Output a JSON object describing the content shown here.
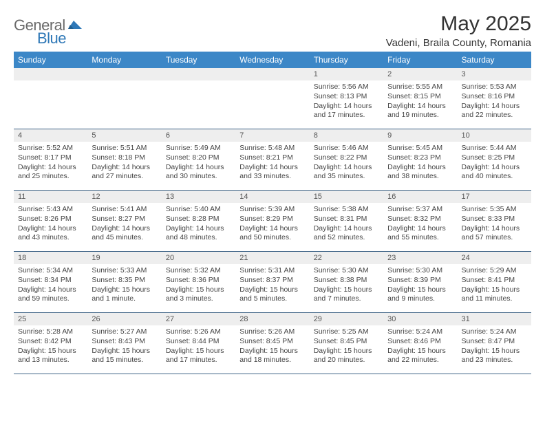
{
  "brand": {
    "general": "General",
    "blue": "Blue"
  },
  "title": "May 2025",
  "location": "Vadeni, Braila County, Romania",
  "dow": [
    "Sunday",
    "Monday",
    "Tuesday",
    "Wednesday",
    "Thursday",
    "Friday",
    "Saturday"
  ],
  "colors": {
    "header_bg": "#3c87c7",
    "header_text": "#ffffff",
    "row_divider": "#3c6285",
    "daybar_bg": "#eeeeee",
    "logo_gray": "#6a6a6a",
    "logo_blue": "#2f78b7"
  },
  "weeks": [
    [
      {
        "n": "",
        "sr": "",
        "ss": "",
        "dl": ""
      },
      {
        "n": "",
        "sr": "",
        "ss": "",
        "dl": ""
      },
      {
        "n": "",
        "sr": "",
        "ss": "",
        "dl": ""
      },
      {
        "n": "",
        "sr": "",
        "ss": "",
        "dl": ""
      },
      {
        "n": "1",
        "sr": "Sunrise: 5:56 AM",
        "ss": "Sunset: 8:13 PM",
        "dl": "Daylight: 14 hours and 17 minutes."
      },
      {
        "n": "2",
        "sr": "Sunrise: 5:55 AM",
        "ss": "Sunset: 8:15 PM",
        "dl": "Daylight: 14 hours and 19 minutes."
      },
      {
        "n": "3",
        "sr": "Sunrise: 5:53 AM",
        "ss": "Sunset: 8:16 PM",
        "dl": "Daylight: 14 hours and 22 minutes."
      }
    ],
    [
      {
        "n": "4",
        "sr": "Sunrise: 5:52 AM",
        "ss": "Sunset: 8:17 PM",
        "dl": "Daylight: 14 hours and 25 minutes."
      },
      {
        "n": "5",
        "sr": "Sunrise: 5:51 AM",
        "ss": "Sunset: 8:18 PM",
        "dl": "Daylight: 14 hours and 27 minutes."
      },
      {
        "n": "6",
        "sr": "Sunrise: 5:49 AM",
        "ss": "Sunset: 8:20 PM",
        "dl": "Daylight: 14 hours and 30 minutes."
      },
      {
        "n": "7",
        "sr": "Sunrise: 5:48 AM",
        "ss": "Sunset: 8:21 PM",
        "dl": "Daylight: 14 hours and 33 minutes."
      },
      {
        "n": "8",
        "sr": "Sunrise: 5:46 AM",
        "ss": "Sunset: 8:22 PM",
        "dl": "Daylight: 14 hours and 35 minutes."
      },
      {
        "n": "9",
        "sr": "Sunrise: 5:45 AM",
        "ss": "Sunset: 8:23 PM",
        "dl": "Daylight: 14 hours and 38 minutes."
      },
      {
        "n": "10",
        "sr": "Sunrise: 5:44 AM",
        "ss": "Sunset: 8:25 PM",
        "dl": "Daylight: 14 hours and 40 minutes."
      }
    ],
    [
      {
        "n": "11",
        "sr": "Sunrise: 5:43 AM",
        "ss": "Sunset: 8:26 PM",
        "dl": "Daylight: 14 hours and 43 minutes."
      },
      {
        "n": "12",
        "sr": "Sunrise: 5:41 AM",
        "ss": "Sunset: 8:27 PM",
        "dl": "Daylight: 14 hours and 45 minutes."
      },
      {
        "n": "13",
        "sr": "Sunrise: 5:40 AM",
        "ss": "Sunset: 8:28 PM",
        "dl": "Daylight: 14 hours and 48 minutes."
      },
      {
        "n": "14",
        "sr": "Sunrise: 5:39 AM",
        "ss": "Sunset: 8:29 PM",
        "dl": "Daylight: 14 hours and 50 minutes."
      },
      {
        "n": "15",
        "sr": "Sunrise: 5:38 AM",
        "ss": "Sunset: 8:31 PM",
        "dl": "Daylight: 14 hours and 52 minutes."
      },
      {
        "n": "16",
        "sr": "Sunrise: 5:37 AM",
        "ss": "Sunset: 8:32 PM",
        "dl": "Daylight: 14 hours and 55 minutes."
      },
      {
        "n": "17",
        "sr": "Sunrise: 5:35 AM",
        "ss": "Sunset: 8:33 PM",
        "dl": "Daylight: 14 hours and 57 minutes."
      }
    ],
    [
      {
        "n": "18",
        "sr": "Sunrise: 5:34 AM",
        "ss": "Sunset: 8:34 PM",
        "dl": "Daylight: 14 hours and 59 minutes."
      },
      {
        "n": "19",
        "sr": "Sunrise: 5:33 AM",
        "ss": "Sunset: 8:35 PM",
        "dl": "Daylight: 15 hours and 1 minute."
      },
      {
        "n": "20",
        "sr": "Sunrise: 5:32 AM",
        "ss": "Sunset: 8:36 PM",
        "dl": "Daylight: 15 hours and 3 minutes."
      },
      {
        "n": "21",
        "sr": "Sunrise: 5:31 AM",
        "ss": "Sunset: 8:37 PM",
        "dl": "Daylight: 15 hours and 5 minutes."
      },
      {
        "n": "22",
        "sr": "Sunrise: 5:30 AM",
        "ss": "Sunset: 8:38 PM",
        "dl": "Daylight: 15 hours and 7 minutes."
      },
      {
        "n": "23",
        "sr": "Sunrise: 5:30 AM",
        "ss": "Sunset: 8:39 PM",
        "dl": "Daylight: 15 hours and 9 minutes."
      },
      {
        "n": "24",
        "sr": "Sunrise: 5:29 AM",
        "ss": "Sunset: 8:41 PM",
        "dl": "Daylight: 15 hours and 11 minutes."
      }
    ],
    [
      {
        "n": "25",
        "sr": "Sunrise: 5:28 AM",
        "ss": "Sunset: 8:42 PM",
        "dl": "Daylight: 15 hours and 13 minutes."
      },
      {
        "n": "26",
        "sr": "Sunrise: 5:27 AM",
        "ss": "Sunset: 8:43 PM",
        "dl": "Daylight: 15 hours and 15 minutes."
      },
      {
        "n": "27",
        "sr": "Sunrise: 5:26 AM",
        "ss": "Sunset: 8:44 PM",
        "dl": "Daylight: 15 hours and 17 minutes."
      },
      {
        "n": "28",
        "sr": "Sunrise: 5:26 AM",
        "ss": "Sunset: 8:45 PM",
        "dl": "Daylight: 15 hours and 18 minutes."
      },
      {
        "n": "29",
        "sr": "Sunrise: 5:25 AM",
        "ss": "Sunset: 8:45 PM",
        "dl": "Daylight: 15 hours and 20 minutes."
      },
      {
        "n": "30",
        "sr": "Sunrise: 5:24 AM",
        "ss": "Sunset: 8:46 PM",
        "dl": "Daylight: 15 hours and 22 minutes."
      },
      {
        "n": "31",
        "sr": "Sunrise: 5:24 AM",
        "ss": "Sunset: 8:47 PM",
        "dl": "Daylight: 15 hours and 23 minutes."
      }
    ]
  ]
}
